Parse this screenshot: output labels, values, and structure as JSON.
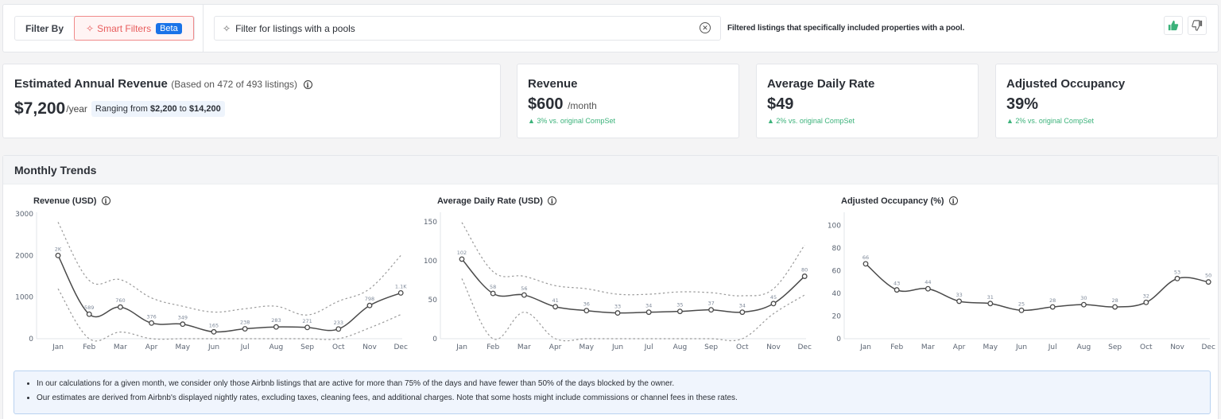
{
  "filter_bar": {
    "filter_by_label": "Filter By",
    "smart_filters_label": "Smart Filters",
    "beta_badge": "Beta",
    "search_value": "Filter for listings with a pools",
    "filter_description": "Filtered listings that specifically included properties with a pool.",
    "thumbs_up_color": "#3bb27a"
  },
  "annual": {
    "title": "Estimated Annual Revenue",
    "subtitle": "(Based on 472 of 493 listings)",
    "value": "$7,200",
    "unit": "/year",
    "range_prefix": "Ranging from",
    "range_low": "$2,200",
    "range_to": "to",
    "range_high": "$14,200"
  },
  "kpis": [
    {
      "title": "Revenue",
      "value": "$600",
      "unit": "/month",
      "delta": "▲ 3% vs. original CompSet"
    },
    {
      "title": "Average Daily Rate",
      "value": "$49",
      "unit": "",
      "delta": "▲ 2% vs. original CompSet"
    },
    {
      "title": "Adjusted Occupancy",
      "value": "39%",
      "unit": "",
      "delta": "▲ 2% vs. original CompSet"
    }
  ],
  "trends": {
    "title": "Monthly Trends",
    "notes": [
      "In our calculations for a given month, we consider only those Airbnb listings that are active for more than 75% of the days and have fewer than 50% of the days blocked by the owner.",
      "Our estimates are derived from Airbnb's displayed nightly rates, excluding taxes, cleaning fees, and additional charges. Note that some hosts might include commissions or channel fees in these rates."
    ]
  },
  "chart_data": [
    {
      "type": "line",
      "title": "Revenue (USD)",
      "categories": [
        "Jan",
        "Feb",
        "Mar",
        "Apr",
        "May",
        "Jun",
        "Jul",
        "Aug",
        "Sep",
        "Oct",
        "Nov",
        "Dec"
      ],
      "series": [
        {
          "name": "Revenue",
          "values": [
            2000,
            589,
            760,
            376,
            349,
            165,
            238,
            283,
            271,
            233,
            798,
            1100
          ]
        },
        {
          "name": "Upper bound",
          "values": [
            2800,
            1400,
            1420,
            980,
            780,
            640,
            720,
            780,
            570,
            900,
            1200,
            2000
          ]
        },
        {
          "name": "Lower bound",
          "values": [
            1200,
            0,
            160,
            0,
            0,
            0,
            0,
            0,
            0,
            0,
            260,
            580
          ]
        }
      ],
      "data_labels": [
        "2K",
        "589",
        "760",
        "376",
        "349",
        "165",
        "238",
        "283",
        "271",
        "233",
        "798",
        "1.1K"
      ],
      "yticks": [
        0,
        1000,
        2000,
        3000
      ],
      "ylim": [
        0,
        3000
      ],
      "grid": false
    },
    {
      "type": "line",
      "title": "Average Daily Rate (USD)",
      "categories": [
        "Jan",
        "Feb",
        "Mar",
        "Apr",
        "May",
        "Jun",
        "Jul",
        "Aug",
        "Sep",
        "Oct",
        "Nov",
        "Dec"
      ],
      "series": [
        {
          "name": "ADR",
          "values": [
            102,
            58,
            56,
            41,
            36,
            33,
            34,
            35,
            37,
            34,
            45,
            80
          ]
        },
        {
          "name": "Upper bound",
          "values": [
            149,
            86,
            80,
            68,
            64,
            57,
            57,
            60,
            59,
            55,
            64,
            120
          ]
        },
        {
          "name": "Lower bound",
          "values": [
            77,
            0,
            34,
            0,
            0,
            0,
            0,
            0,
            0,
            0,
            32,
            56
          ]
        }
      ],
      "data_labels": [
        "102",
        "58",
        "56",
        "41",
        "36",
        "33",
        "34",
        "35",
        "37",
        "34",
        "45",
        "80"
      ],
      "yticks": [
        0,
        50,
        100,
        150
      ],
      "ylim": [
        0,
        160
      ],
      "grid": false
    },
    {
      "type": "line",
      "title": "Adjusted Occupancy (%)",
      "categories": [
        "Jan",
        "Feb",
        "Mar",
        "Apr",
        "May",
        "Jun",
        "Jul",
        "Aug",
        "Sep",
        "Oct",
        "Nov",
        "Dec"
      ],
      "series": [
        {
          "name": "Occupancy",
          "values": [
            66,
            43,
            44,
            33,
            31,
            25,
            28,
            30,
            28,
            32,
            53,
            50
          ]
        }
      ],
      "data_labels": [
        "66",
        "43",
        "44",
        "33",
        "31",
        "25",
        "28",
        "30",
        "28",
        "32",
        "53",
        "50"
      ],
      "yticks": [
        0,
        20,
        40,
        60,
        80,
        100
      ],
      "ylim": [
        0,
        110
      ],
      "grid": false
    }
  ]
}
